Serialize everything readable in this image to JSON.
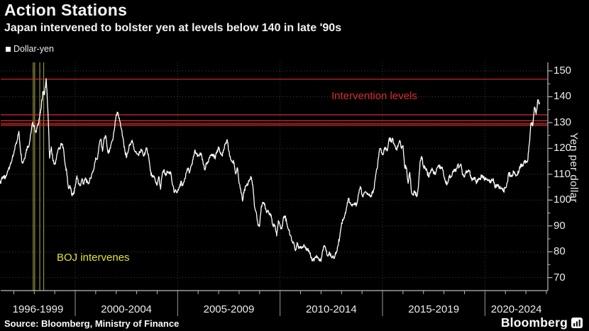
{
  "header": {
    "title": "Action Stations",
    "subtitle": "Japan intervened to bolster yen at levels below 140 in late '90s"
  },
  "legend": {
    "label": "Dollar-yen",
    "swatch_color": "#ffffff"
  },
  "annotations": {
    "intervention_levels": "Intervention levels",
    "boj_intervenes": "BOJ intervenes"
  },
  "source": "Source: Bloomberg, Ministry of Finance",
  "brand": {
    "name": "Bloomberg",
    "icon": "bar-chart-icon"
  },
  "colors": {
    "background": "#000000",
    "line": "#ffffff",
    "intervention_red": "#d92b2b",
    "boj_yellow_line": "#8f8f3f",
    "boj_yellow_text": "#e3e331",
    "grid": "#3f3f3f",
    "axis": "#b9b9b9",
    "text": "#ececec"
  },
  "chart_data": {
    "type": "line",
    "title": "Action Stations",
    "ylabel": "Yen per dollar",
    "ylim": [
      65,
      153
    ],
    "y_ticks": [
      70,
      80,
      90,
      100,
      110,
      120,
      130,
      140,
      150
    ],
    "y_minor_ticks": [
      75,
      85,
      95,
      105,
      115,
      125,
      135,
      145
    ],
    "grid": "dotted",
    "legend_position": "top-left",
    "x_period_labels": [
      "1996-1999",
      "2000-2004",
      "2005-2009",
      "2010-2014",
      "2015-2019",
      "2020-2024"
    ],
    "x_period_boundary_years": [
      2000,
      2005,
      2010,
      2015,
      2020
    ],
    "x_range_years": [
      1996.33,
      2023.07
    ],
    "intervention_level_lines_yen": [
      146.8,
      133.0,
      130.7,
      129.5,
      128.9
    ],
    "boj_intervention_dates_years": [
      1997.95,
      1998.02,
      1998.27,
      1998.46
    ],
    "series": [
      {
        "name": "Dollar-yen",
        "color": "#ffffff",
        "start_year": 1996.3333,
        "step_years": 0.083333,
        "values": [
          106.3,
          108.7,
          109.2,
          108.3,
          110.1,
          112.4,
          113.8,
          115.7,
          117.8,
          121.5,
          123.2,
          126.6,
          118.9,
          114.3,
          115.6,
          118.2,
          120.9,
          121.2,
          125.8,
          129.9,
          128.7,
          126.1,
          128.8,
          131.8,
          135.2,
          142.0,
          140.8,
          147.0,
          134.5,
          116.2,
          120.6,
          115.2,
          113.8,
          116.4,
          119.6,
          119.8,
          121.9,
          120.4,
          114.3,
          110.9,
          104.6,
          105.4,
          101.9,
          102.2,
          105.3,
          109.4,
          106.2,
          105.6,
          108.3,
          106.1,
          108.6,
          106.9,
          106.7,
          108.4,
          110.6,
          112.2,
          116.4,
          115.9,
          121.4,
          123.6,
          118.9,
          124.1,
          124.6,
          118.9,
          118.5,
          121.6,
          123.2,
          127.6,
          132.7,
          133.9,
          131.0,
          127.6,
          123.9,
          119.4,
          116.4,
          118.9,
          121.7,
          122.9,
          121.4,
          118.8,
          117.9,
          117.5,
          118.6,
          119.4,
          117.0,
          118.4,
          120.1,
          116.8,
          111.4,
          108.9,
          109.4,
          107.2,
          105.9,
          109.1,
          104.2,
          110.3,
          111.8,
          109.4,
          111.1,
          110.2,
          110.6,
          105.9,
          102.9,
          103.6,
          103.4,
          104.9,
          107.2,
          105.7,
          108.1,
          110.6,
          112.2,
          110.7,
          113.3,
          115.7,
          119.2,
          117.9,
          117.2,
          117.9,
          117.5,
          113.8,
          111.6,
          114.5,
          114.6,
          117.2,
          117.8,
          117.6,
          115.9,
          118.6,
          120.6,
          118.2,
          117.1,
          119.4,
          121.7,
          123.4,
          118.9,
          115.9,
          114.9,
          114.6,
          110.1,
          112.5,
          106.6,
          103.9,
          99.6,
          103.9,
          105.4,
          106.1,
          107.7,
          108.9,
          105.9,
          97.4,
          95.4,
          90.6,
          89.9,
          97.6,
          98.9,
          98.6,
          95.4,
          96.1,
          94.6,
          93.1,
          89.7,
          90.3,
          86.1,
          92.1,
          90.3,
          88.9,
          93.4,
          93.9,
          90.9,
          88.4,
          86.4,
          84.2,
          83.5,
          80.4,
          83.6,
          81.2,
          82.1,
          81.8,
          82.8,
          81.2,
          81.1,
          80.4,
          77.7,
          76.7,
          76.7,
          78.2,
          77.6,
          76.9,
          76.3,
          80.6,
          82.4,
          80.3,
          78.3,
          79.8,
          78.1,
          78.4,
          77.9,
          79.8,
          82.5,
          86.1,
          91.1,
          92.6,
          94.2,
          97.4,
          100.7,
          99.1,
          97.9,
          98.2,
          98.3,
          98.4,
          102.4,
          105.3,
          102.0,
          102.1,
          103.2,
          102.2,
          101.8,
          101.3,
          102.8,
          104.1,
          109.7,
          112.3,
          118.6,
          119.8,
          117.5,
          119.7,
          120.1,
          119.4,
          124.1,
          122.5,
          123.9,
          121.2,
          119.9,
          120.6,
          123.1,
          120.2,
          121.1,
          112.7,
          112.6,
          106.5,
          110.7,
          102.8,
          102.1,
          103.4,
          101.3,
          104.8,
          114.5,
          116.9,
          112.8,
          112.7,
          111.4,
          108.9,
          110.8,
          112.4,
          110.3,
          109.9,
          112.5,
          113.6,
          112.1,
          112.7,
          109.2,
          106.7,
          106.3,
          109.3,
          108.8,
          110.7,
          111.9,
          111.0,
          113.7,
          112.9,
          113.6,
          109.7,
          108.9,
          111.4,
          110.9,
          111.4,
          108.3,
          107.9,
          108.8,
          106.3,
          108.1,
          108.0,
          109.5,
          108.6,
          108.4,
          108.1,
          107.5,
          107.2,
          107.8,
          107.9,
          104.7,
          105.9,
          105.5,
          104.7,
          104.3,
          103.3,
          104.7,
          106.6,
          110.7,
          109.3,
          109.5,
          111.1,
          109.7,
          110.0,
          111.3,
          114.0,
          113.1,
          115.1,
          115.1,
          115.0,
          121.7,
          129.9,
          128.7,
          136.0,
          133.2,
          138.9,
          137.2
        ]
      }
    ]
  }
}
